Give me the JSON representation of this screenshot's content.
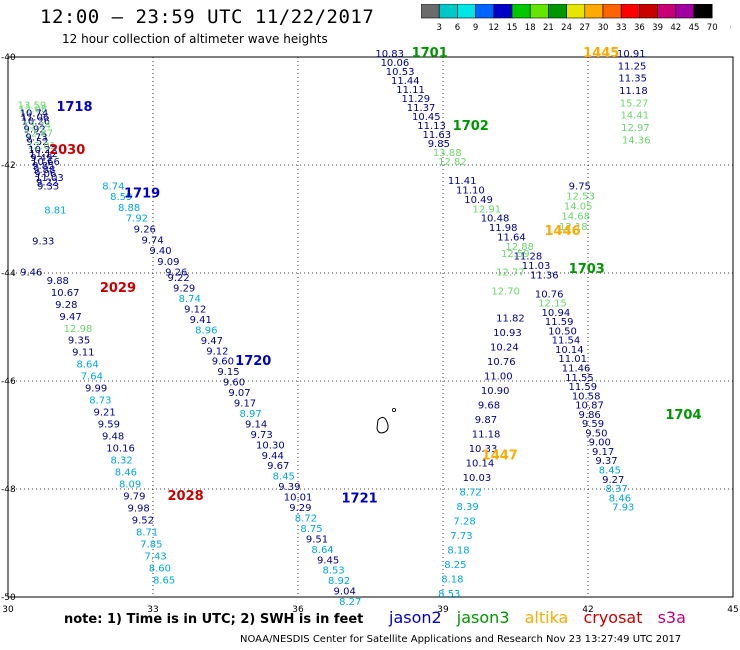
{
  "title": "12:00 – 23:59 UTC 11/22/2017",
  "subtitle": "12 hour collection of altimeter wave heights",
  "note": "note: 1) Time is in UTC; 2) SWH is in feet",
  "credit": "NOAA/NESDIS Center for Satellite Applications and Research    Nov 23 13:27:49 UTC 2017",
  "colors": {
    "bin_colors": [
      "#6b6b6b",
      "#00c8c8",
      "#00e6e6",
      "#0064ff",
      "#0000c8",
      "#00c800",
      "#64e600",
      "#009600",
      "#e6e600",
      "#ffaa00",
      "#ff6400",
      "#ff0000",
      "#c80000",
      "#c80078",
      "#a000a0",
      "#000000"
    ],
    "level1": "#00a8e0",
    "level2": "#6ad86a",
    "level3": "#000090"
  },
  "legend": [
    {
      "label": "jason2",
      "color": "#0000c8"
    },
    {
      "label": "jason3",
      "color": "#009600"
    },
    {
      "label": "altika",
      "color": "#ffaa00"
    },
    {
      "label": "cryosat",
      "color": "#c80000"
    },
    {
      "label": "s3a",
      "color": "#c80078"
    }
  ],
  "chart_data": {
    "type": "scatter",
    "title": "12:00 – 23:59 UTC 11/22/2017",
    "subtitle": "12 hour collection of altimeter wave heights",
    "xlim": [
      30,
      45
    ],
    "ylim": [
      -50,
      -40
    ],
    "x_ticks": [
      "30",
      "33",
      "36",
      "39",
      "42",
      "45"
    ],
    "y_ticks": [
      "-40",
      "-42",
      "-44",
      "-46",
      "-48",
      "-50"
    ],
    "grid": true,
    "color_scale": {
      "ticks": [
        "3",
        "6",
        "9",
        "12",
        "15",
        "18",
        "21",
        "24",
        "27",
        "30",
        "33",
        "36",
        "39",
        "42",
        "45",
        "70",
        "(ft)"
      ]
    },
    "time_labels": [
      {
        "text": "1718",
        "x": 31.0,
        "y": -41.0,
        "sat": "jason2"
      },
      {
        "text": "2030",
        "x": 30.85,
        "y": -41.8,
        "sat": "cryosat"
      },
      {
        "text": "1719",
        "x": 32.4,
        "y": -42.6,
        "sat": "jason2"
      },
      {
        "text": "2029",
        "x": 31.9,
        "y": -44.35,
        "sat": "cryosat"
      },
      {
        "text": "1720",
        "x": 34.7,
        "y": -45.7,
        "sat": "jason2"
      },
      {
        "text": "2028",
        "x": 33.3,
        "y": -48.2,
        "sat": "cryosat"
      },
      {
        "text": "1721",
        "x": 36.9,
        "y": -48.25,
        "sat": "jason2"
      },
      {
        "text": "1701",
        "x": 38.35,
        "y": -40.0,
        "sat": "jason3"
      },
      {
        "text": "1702",
        "x": 39.2,
        "y": -41.35,
        "sat": "jason3"
      },
      {
        "text": "1703",
        "x": 41.6,
        "y": -44.0,
        "sat": "jason3"
      },
      {
        "text": "1704",
        "x": 43.6,
        "y": -46.7,
        "sat": "jason3"
      },
      {
        "text": "1445",
        "x": 41.9,
        "y": -40.0,
        "sat": "altika"
      },
      {
        "text": "1446",
        "x": 41.1,
        "y": -43.3,
        "sat": "altika"
      },
      {
        "text": "1447",
        "x": 39.8,
        "y": -47.45,
        "sat": "altika"
      }
    ],
    "tracks": [
      {
        "name": "track-a",
        "lon": [
          30.2,
          30.6
        ],
        "lat": [
          -40.95,
          -42.45
        ],
        "swh": [
          "13.59",
          "12.08",
          "10.74",
          "11.06",
          "10.26",
          "13.24",
          "9.92",
          "12.87",
          "9.73",
          "9.52",
          "12.01",
          "10.22",
          "11.12",
          "9.49",
          "10.66",
          "9.85",
          "9.88",
          "9.06",
          "11.03",
          "9.22",
          "9.33"
        ]
      },
      {
        "name": "track-b",
        "lon": [
          31.95,
          33.25
        ],
        "lat": [
          -42.45,
          -44.05
        ],
        "swh": [
          "8.74",
          "8.59",
          "8.88",
          "7.92",
          "9.26",
          "9.74",
          "9.40",
          "9.09",
          "9.26"
        ]
      },
      {
        "name": "track-c",
        "lon": [
          30.75,
          30.25
        ],
        "lat": [
          -42.9,
          -44.05
        ],
        "swh": [
          "8.81",
          "9.33",
          "9.46"
        ]
      },
      {
        "name": "track-d",
        "lon": [
          33.3,
          36.85
        ],
        "lat": [
          -44.15,
          -50.15
        ],
        "swh": [
          "9.22",
          "9.29",
          "8.74",
          "9.12",
          "9.41",
          "8.96",
          "9.47",
          "9.12",
          "9.60",
          "9.15",
          "9.60",
          "9.07",
          "9.17",
          "8.97",
          "9.14",
          "9.73",
          "10.30",
          "9.44",
          "9.67",
          "8.45",
          "9.39",
          "10.01",
          "9.29",
          "8.72",
          "8.75",
          "9.51",
          "8.64",
          "9.45",
          "8.53",
          "8.92",
          "9.04",
          "8.27"
        ]
      },
      {
        "name": "track-e",
        "lon": [
          30.8,
          33.0
        ],
        "lat": [
          -44.2,
          -49.75
        ],
        "swh": [
          "9.88",
          "10.67",
          "9.28",
          "9.47",
          "12.98",
          "9.35",
          "9.11",
          "8.64",
          "7.64",
          "9.99",
          "8.73",
          "9.21",
          "9.59",
          "9.48",
          "10.16",
          "8.32",
          "8.46",
          "8.09",
          "9.79",
          "9.98",
          "9.52",
          "8.71",
          "7.85",
          "7.43",
          "8.60",
          "8.65"
        ]
      },
      {
        "name": "track-f",
        "lon": [
          37.6,
          38.9
        ],
        "lat": [
          -40.0,
          -42.0
        ],
        "swh": [
          "10.83",
          "10.06",
          "10.53",
          "11.44",
          "11.11",
          "11.29",
          "11.37",
          "10.45",
          "11.13",
          "11.63",
          "9.85",
          "13.88",
          "12.82"
        ]
      },
      {
        "name": "track-g",
        "lon": [
          39.1,
          40.8
        ],
        "lat": [
          -42.35,
          -44.1
        ],
        "swh": [
          "11.41",
          "11.10",
          "10.49",
          "12.91",
          "10.48",
          "11.98",
          "11.64",
          "12.88",
          "11.28",
          "11.03",
          "11.36"
        ]
      },
      {
        "name": "track-h",
        "lon": [
          41.6,
          41.4
        ],
        "lat": [
          -42.45,
          -43.2
        ],
        "swh": [
          "9.75",
          "12.53",
          "14.05",
          "14.68",
          "12.18"
        ]
      },
      {
        "name": "track-i",
        "lon": [
          40.2,
          40.0
        ],
        "lat": [
          -43.7,
          -44.4
        ],
        "swh": [
          "12.59",
          "12.77",
          "12.70"
        ]
      },
      {
        "name": "track-j",
        "lon": [
          40.9,
          42.5
        ],
        "lat": [
          -44.45,
          -48.4
        ],
        "swh": [
          "10.76",
          "12.15",
          "10.94",
          "11.59",
          "10.50",
          "11.54",
          "10.14",
          "11.01",
          "11.46",
          "11.55",
          "11.59",
          "10.58",
          "10.87",
          "9.86",
          "9.59",
          "9.50",
          "9.00",
          "9.17",
          "9.37",
          "8.45",
          "9.27",
          "8.37",
          "8.46",
          "7.93"
        ]
      },
      {
        "name": "track-k",
        "lon": [
          40.1,
          38.9
        ],
        "lat": [
          -44.9,
          -50.0
        ],
        "swh": [
          "11.82",
          "10.93",
          "10.24",
          "10.76",
          "11.00",
          "10.90",
          "9.68",
          "9.87",
          "11.18",
          "10.33",
          "10.14",
          "10.03",
          "8.72",
          "8.39",
          "7.28",
          "7.73",
          "8.18",
          "8.25",
          "8.18",
          "8.53"
        ]
      },
      {
        "name": "track-l",
        "lon": [
          42.6,
          42.7
        ],
        "lat": [
          -40.0,
          -41.6
        ],
        "swh": [
          "10.91",
          "11.25",
          "11.35",
          "11.18",
          "15.27",
          "14.41",
          "12.97",
          "14.36"
        ]
      }
    ]
  }
}
